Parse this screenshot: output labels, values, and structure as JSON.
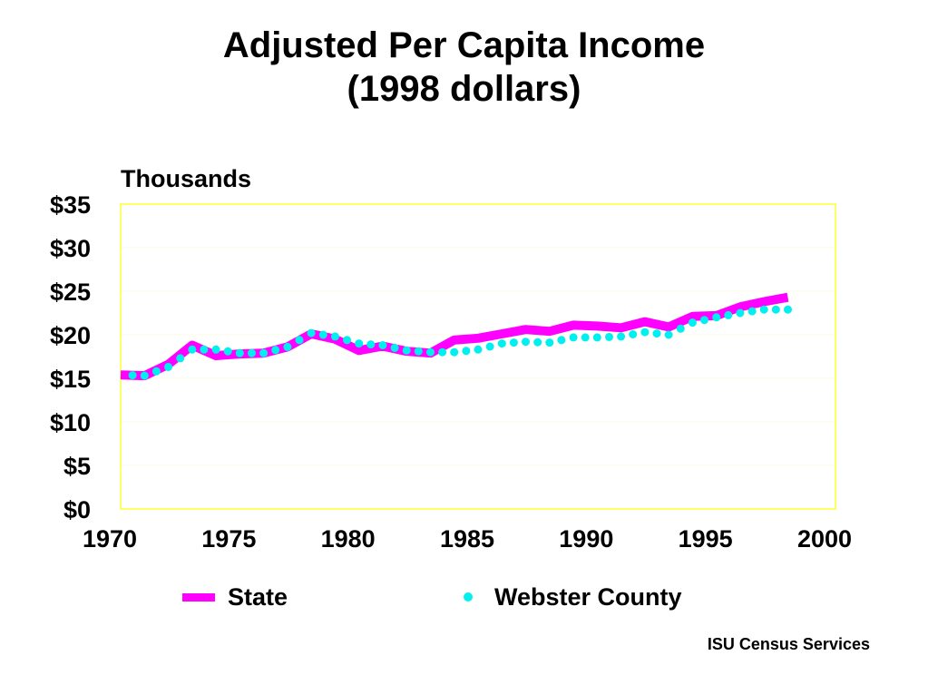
{
  "title_line1": "Adjusted Per Capita Income",
  "title_line2": "(1998 dollars)",
  "credit": "ISU Census Services",
  "chart_data": {
    "type": "line",
    "title": "Adjusted Per Capita Income (1998 dollars)",
    "units_label": "Thousands",
    "xlim": [
      1970,
      2000
    ],
    "ylim": [
      0,
      35
    ],
    "x_ticks": [
      "1970",
      "1975",
      "1980",
      "1985",
      "1990",
      "1995",
      "2000"
    ],
    "y_ticks": [
      "$0",
      "$5",
      "$10",
      "$15",
      "$20",
      "$25",
      "$30",
      "$35"
    ],
    "grid": true,
    "legend_position": "bottom",
    "x": [
      1970,
      1971,
      1972,
      1973,
      1974,
      1975,
      1976,
      1977,
      1978,
      1979,
      1980,
      1981,
      1982,
      1983,
      1984,
      1985,
      1986,
      1987,
      1988,
      1989,
      1990,
      1991,
      1992,
      1993,
      1994,
      1995,
      1996,
      1997,
      1998
    ],
    "series": [
      {
        "name": "State",
        "color": "#ff00ff",
        "style": "thick-line",
        "values": [
          15.4,
          15.3,
          16.6,
          18.8,
          17.6,
          17.8,
          17.9,
          18.6,
          20.1,
          19.5,
          18.2,
          18.7,
          18.1,
          17.9,
          19.4,
          19.6,
          20.1,
          20.6,
          20.4,
          21.1,
          21.0,
          20.8,
          21.5,
          20.9,
          22.1,
          22.2,
          23.2,
          23.8,
          24.3
        ]
      },
      {
        "name": "Webster County",
        "color": "#00f0f0",
        "style": "dots",
        "values": [
          15.4,
          15.3,
          16.3,
          18.3,
          18.3,
          17.9,
          17.9,
          18.6,
          20.2,
          19.8,
          19.0,
          18.8,
          18.2,
          18.0,
          18.0,
          18.3,
          19.0,
          19.2,
          19.1,
          19.7,
          19.7,
          19.8,
          20.3,
          20.0,
          21.4,
          22.0,
          22.5,
          22.9,
          22.9
        ]
      }
    ]
  }
}
